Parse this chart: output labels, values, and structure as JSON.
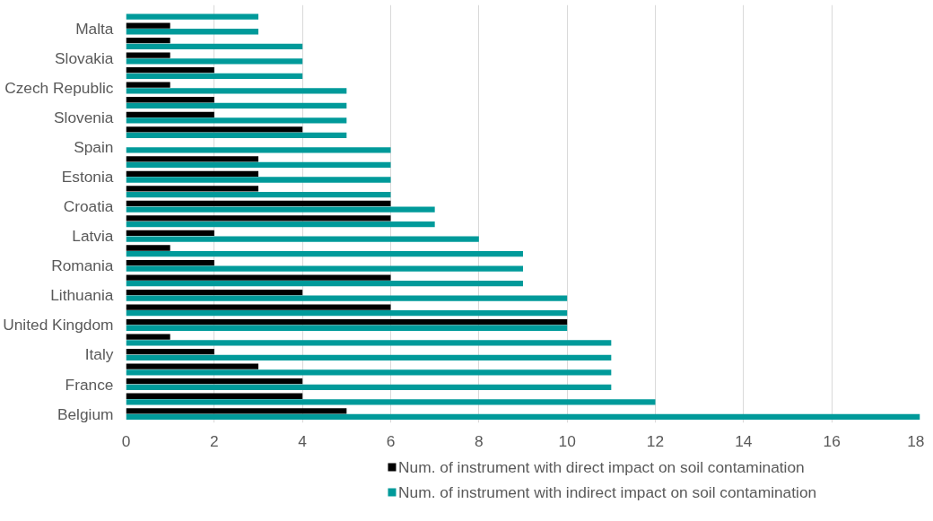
{
  "chart_data": {
    "type": "bar",
    "orientation": "horizontal",
    "categories": [
      null,
      "Malta",
      null,
      "Slovakia",
      null,
      "Czech Republic",
      null,
      "Slovenia",
      null,
      "Spain",
      null,
      "Estonia",
      null,
      "Croatia",
      null,
      "Latvia",
      null,
      "Romania",
      null,
      "Lithuania",
      null,
      "United Kingdom",
      null,
      "Italy",
      null,
      "France",
      null,
      "Belgium"
    ],
    "series": [
      {
        "name": "Num. of instrument with direct impact on soil contamination",
        "color": "#000000",
        "values": [
          null,
          1,
          1,
          1,
          2,
          1,
          2,
          2,
          4,
          null,
          3,
          3,
          3,
          6,
          6,
          2,
          1,
          2,
          6,
          4,
          6,
          10,
          1,
          2,
          3,
          4,
          4,
          5
        ]
      },
      {
        "name": "Num. of instrument with indirect impact on soil contamination",
        "color": "#009a9a",
        "values": [
          3,
          3,
          4,
          4,
          4,
          5,
          5,
          5,
          5,
          6,
          6,
          6,
          6,
          7,
          7,
          8,
          9,
          9,
          9,
          10,
          10,
          10,
          11,
          11,
          11,
          11,
          12,
          18
        ]
      }
    ],
    "xlim": [
      0,
      18
    ],
    "xticks": [
      0,
      2,
      4,
      6,
      8,
      10,
      12,
      14,
      16,
      18
    ],
    "grid": "x",
    "legend": "bottom"
  }
}
